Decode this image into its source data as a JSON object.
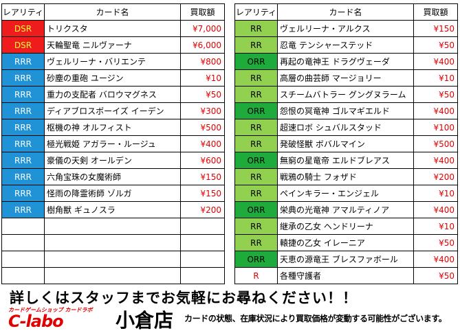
{
  "headers": {
    "rarity": "レアリティ",
    "card_name": "カード名",
    "price": "買取額"
  },
  "left_rows": [
    {
      "rarity": "DSR",
      "name": "トリクスタ",
      "price": "¥7,000"
    },
    {
      "rarity": "DSR",
      "name": "天輪聖竜 ニルヴァーナ",
      "price": "¥6,000"
    },
    {
      "rarity": "RRR",
      "name": "ヴェルリーナ・バリエンテ",
      "price": "¥800"
    },
    {
      "rarity": "RRR",
      "name": "砂塵の重砲 ユージン",
      "price": "¥10"
    },
    {
      "rarity": "RRR",
      "name": "重力の支配者 バロウマグネス",
      "price": "¥50"
    },
    {
      "rarity": "RRR",
      "name": "ディアブロスボーイズ イーデン",
      "price": "¥300"
    },
    {
      "rarity": "RRR",
      "name": "枢機の神 オルフィスト",
      "price": "¥500"
    },
    {
      "rarity": "RRR",
      "name": "極光戦姫 アガラー・ルージュ",
      "price": "¥400"
    },
    {
      "rarity": "RRR",
      "name": "豪儀の天剣 オールデン",
      "price": "¥600"
    },
    {
      "rarity": "RRR",
      "name": "六角宝珠の女魔術師",
      "price": "¥150"
    },
    {
      "rarity": "RRR",
      "name": "怪雨の降霊術師 ゾルガ",
      "price": "¥150"
    },
    {
      "rarity": "RRR",
      "name": "樹角獣 ギュノスラ",
      "price": "¥200"
    },
    {
      "rarity": "",
      "name": "",
      "price": ""
    },
    {
      "rarity": "",
      "name": "",
      "price": ""
    },
    {
      "rarity": "",
      "name": "",
      "price": ""
    },
    {
      "rarity": "",
      "name": "",
      "price": ""
    }
  ],
  "right_rows": [
    {
      "rarity": "RR",
      "name": "ヴェルリーナ・アルクス",
      "price": "¥150"
    },
    {
      "rarity": "RR",
      "name": "忍竜 テンシャーステッド",
      "price": "¥50"
    },
    {
      "rarity": "ORR",
      "name": "再起の竜神王 ドラグヴェーダ",
      "price": "¥400"
    },
    {
      "rarity": "RR",
      "name": "高層の曲芸師 マージョリー",
      "price": "¥10"
    },
    {
      "rarity": "RR",
      "name": "スチームバトラー グングヌラーム",
      "price": "¥50"
    },
    {
      "rarity": "ORR",
      "name": "怨恨の冥竜神 ゴルマギエルド",
      "price": "¥400"
    },
    {
      "rarity": "RR",
      "name": "超速ロボ シュバルスタッド",
      "price": "¥100"
    },
    {
      "rarity": "RR",
      "name": "発破怪獣 ボバルマイン",
      "price": "¥500"
    },
    {
      "rarity": "ORR",
      "name": "無窮の星竜帝 エルドブレアス",
      "price": "¥400"
    },
    {
      "rarity": "RR",
      "name": "戦鴉の騎士 フォザド",
      "price": "¥200"
    },
    {
      "rarity": "RR",
      "name": "ペインキラー・エンジェル",
      "price": "¥10"
    },
    {
      "rarity": "ORR",
      "name": "栄典の光竜神 アマルティノア",
      "price": "¥400"
    },
    {
      "rarity": "RR",
      "name": "継承の乙女 ヘンドリーナ",
      "price": "¥10"
    },
    {
      "rarity": "RR",
      "name": "轅捷の乙女 イレーニア",
      "price": "¥50"
    },
    {
      "rarity": "ORR",
      "name": "天恵の源竜王 ブレスファボール",
      "price": "¥400"
    },
    {
      "rarity": "R",
      "name": "各種守護者",
      "price": "¥50"
    }
  ],
  "rarity_colors": {
    "DSR": "#ee1c1c",
    "RRR": "#1f93d6",
    "RR": "#92d050",
    "ORR": "#1faa3c",
    "R": "#ffffff"
  },
  "footer": {
    "ask_staff": "詳しくはスタッフまでお気軽にお尋ねください！！",
    "logo_tagline": "カードゲームショップ カードラボ",
    "logo_text": "C-labo",
    "store_name": "小倉店",
    "disclaimer": "カードの状態、在庫状況により買取価格が変動する可能性がございます。"
  }
}
